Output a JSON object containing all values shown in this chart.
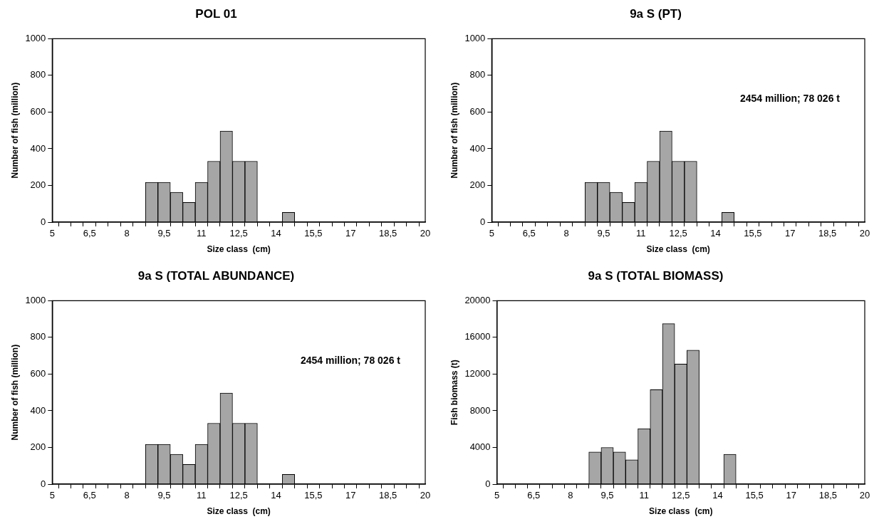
{
  "chart_data": [
    {
      "type": "bar",
      "title": "POL 01",
      "xlabel": "Size class  (cm)",
      "ylabel": "Number of fish (million)",
      "color": "#a6a6a6",
      "categories": [
        "5",
        null,
        null,
        "6,5",
        null,
        null,
        "8",
        null,
        null,
        "9,5",
        null,
        null,
        "11",
        null,
        null,
        "12,5",
        null,
        null,
        "14",
        null,
        null,
        "15,5",
        null,
        null,
        "17",
        null,
        null,
        "18,5",
        null,
        null,
        "20"
      ],
      "values": [
        0,
        0,
        0,
        0,
        0,
        0,
        0,
        0,
        217,
        217,
        163,
        107,
        217,
        332,
        497,
        332,
        332,
        0,
        0,
        53,
        0,
        0,
        0,
        0,
        0,
        0,
        0,
        0,
        0,
        0,
        0
      ],
      "ylim": [
        0,
        1000
      ],
      "yticks": [
        0,
        200,
        400,
        600,
        800,
        1000
      ]
    },
    {
      "type": "bar",
      "title": "9a S (PT)",
      "xlabel": "Size class  (cm)",
      "ylabel": "Number of fish (million)",
      "color": "#a6a6a6",
      "categories": [
        "5",
        null,
        null,
        "6,5",
        null,
        null,
        "8",
        null,
        null,
        "9,5",
        null,
        null,
        "11",
        null,
        null,
        "12,5",
        null,
        null,
        "14",
        null,
        null,
        "15,5",
        null,
        null,
        "17",
        null,
        null,
        "18,5",
        null,
        null,
        "20"
      ],
      "values": [
        0,
        0,
        0,
        0,
        0,
        0,
        0,
        0,
        217,
        217,
        163,
        107,
        217,
        332,
        497,
        332,
        332,
        0,
        0,
        53,
        0,
        0,
        0,
        0,
        0,
        0,
        0,
        0,
        0,
        0,
        0
      ],
      "ylim": [
        0,
        1000
      ],
      "yticks": [
        0,
        200,
        400,
        600,
        800,
        1000
      ],
      "annotations": [
        "2454 million; 78 026 t"
      ]
    },
    {
      "type": "bar",
      "title": "9a S (TOTAL ABUNDANCE)",
      "xlabel": "Size class  (cm)",
      "ylabel": "Number of fish (million)",
      "color": "#a6a6a6",
      "categories": [
        "5",
        null,
        null,
        "6,5",
        null,
        null,
        "8",
        null,
        null,
        "9,5",
        null,
        null,
        "11",
        null,
        null,
        "12,5",
        null,
        null,
        "14",
        null,
        null,
        "15,5",
        null,
        null,
        "17",
        null,
        null,
        "18,5",
        null,
        null,
        "20"
      ],
      "values": [
        0,
        0,
        0,
        0,
        0,
        0,
        0,
        0,
        217,
        217,
        163,
        107,
        217,
        332,
        497,
        332,
        332,
        0,
        0,
        53,
        0,
        0,
        0,
        0,
        0,
        0,
        0,
        0,
        0,
        0,
        0
      ],
      "ylim": [
        0,
        1000
      ],
      "yticks": [
        0,
        200,
        400,
        600,
        800,
        1000
      ],
      "annotations": [
        "2454 million; 78 026 t"
      ]
    },
    {
      "type": "bar",
      "title": "9a S (TOTAL BIOMASS)",
      "xlabel": "Size class  (cm)",
      "ylabel": "Fish biomass (t)",
      "color": "#a6a6a6",
      "categories": [
        "5",
        null,
        null,
        "6,5",
        null,
        null,
        "8",
        null,
        null,
        "9,5",
        null,
        null,
        "11",
        null,
        null,
        "12,5",
        null,
        null,
        "14",
        null,
        null,
        "15,5",
        null,
        null,
        "17",
        null,
        null,
        "18,5",
        null,
        null,
        "20"
      ],
      "values": [
        0,
        0,
        0,
        0,
        0,
        0,
        0,
        0,
        3500,
        4000,
        3500,
        2650,
        6050,
        10300,
        17500,
        13100,
        14600,
        0,
        0,
        3250,
        0,
        0,
        0,
        0,
        0,
        0,
        0,
        0,
        0,
        0,
        0
      ],
      "ylim": [
        0,
        20000
      ],
      "yticks": [
        0,
        4000,
        8000,
        12000,
        16000,
        20000
      ]
    }
  ]
}
